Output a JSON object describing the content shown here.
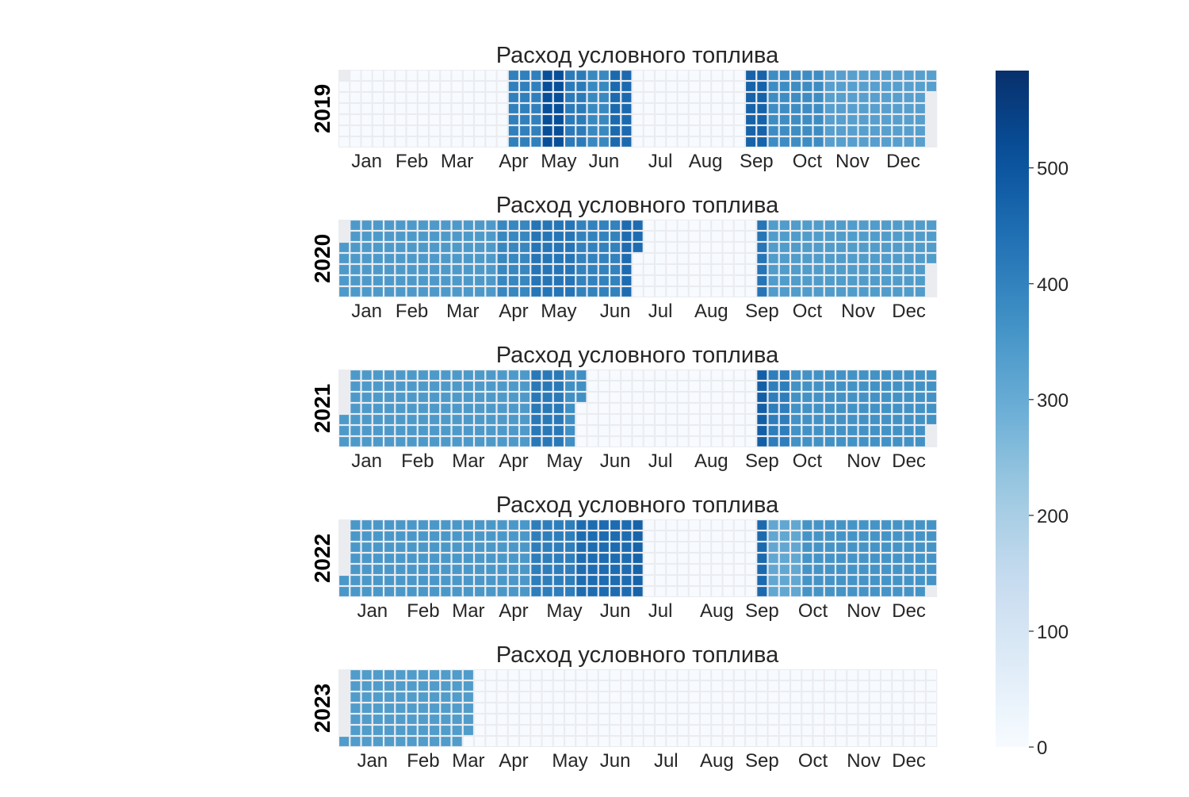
{
  "chart_data": {
    "type": "heatmap",
    "cmap": "Blues",
    "color_range": [
      0,
      584
    ],
    "colorbar_ticks": [
      0,
      100,
      200,
      300,
      400,
      500
    ],
    "month_labels": [
      "Jan",
      "Feb",
      "Mar",
      "Apr",
      "May",
      "Jun",
      "Jul",
      "Aug",
      "Sep",
      "Oct",
      "Nov",
      "Dec"
    ],
    "fill_color": "#ebecf0",
    "panels": [
      {
        "year": "2019",
        "title": "Расход условного топлива",
        "first_weekday": 1,
        "periods": [
          {
            "from": "2019-01-01",
            "to": "2019-04-14",
            "value": 0
          },
          {
            "from": "2019-04-15",
            "to": "2019-05-05",
            "value": 405
          },
          {
            "from": "2019-05-06",
            "to": "2019-05-19",
            "value": 515
          },
          {
            "from": "2019-05-20",
            "to": "2019-06-02",
            "value": 415
          },
          {
            "from": "2019-06-03",
            "to": "2019-06-16",
            "value": 385
          },
          {
            "from": "2019-06-17",
            "to": "2019-06-30",
            "value": 455
          },
          {
            "from": "2019-07-01",
            "to": "2019-09-08",
            "value": 0
          },
          {
            "from": "2019-09-09",
            "to": "2019-09-22",
            "value": 470
          },
          {
            "from": "2019-09-23",
            "to": "2019-10-27",
            "value": 375
          },
          {
            "from": "2019-10-28",
            "to": "2019-12-31",
            "value": 330
          }
        ]
      },
      {
        "year": "2020",
        "title": "Расход условного топлива",
        "first_weekday": 2,
        "periods": [
          {
            "from": "2020-01-01",
            "to": "2020-04-05",
            "value": 345
          },
          {
            "from": "2020-04-06",
            "to": "2020-04-26",
            "value": 390
          },
          {
            "from": "2020-04-27",
            "to": "2020-05-24",
            "value": 430
          },
          {
            "from": "2020-05-25",
            "to": "2020-06-21",
            "value": 400
          },
          {
            "from": "2020-06-22",
            "to": "2020-07-01",
            "value": 450
          },
          {
            "from": "2020-07-02",
            "to": "2020-09-13",
            "value": 0
          },
          {
            "from": "2020-09-14",
            "to": "2020-09-20",
            "value": 430
          },
          {
            "from": "2020-09-21",
            "to": "2020-12-31",
            "value": 340
          }
        ]
      },
      {
        "year": "2021",
        "title": "Расход условного топлива",
        "first_weekday": 4,
        "periods": [
          {
            "from": "2021-01-01",
            "to": "2021-04-25",
            "value": 345
          },
          {
            "from": "2021-04-26",
            "to": "2021-05-16",
            "value": 420
          },
          {
            "from": "2021-05-17",
            "to": "2021-05-26",
            "value": 370
          },
          {
            "from": "2021-05-27",
            "to": "2021-09-12",
            "value": 0
          },
          {
            "from": "2021-09-13",
            "to": "2021-09-19",
            "value": 480
          },
          {
            "from": "2021-09-20",
            "to": "2021-10-03",
            "value": 410
          },
          {
            "from": "2021-10-04",
            "to": "2021-12-31",
            "value": 365
          }
        ]
      },
      {
        "year": "2022",
        "title": "Расход условного топлива",
        "first_weekday": 5,
        "periods": [
          {
            "from": "2022-01-01",
            "to": "2022-04-24",
            "value": 350
          },
          {
            "from": "2022-04-25",
            "to": "2022-05-22",
            "value": 410
          },
          {
            "from": "2022-05-23",
            "to": "2022-06-26",
            "value": 450
          },
          {
            "from": "2022-06-27",
            "to": "2022-07-03",
            "value": 470
          },
          {
            "from": "2022-07-04",
            "to": "2022-09-11",
            "value": 0
          },
          {
            "from": "2022-09-12",
            "to": "2022-09-18",
            "value": 455
          },
          {
            "from": "2022-09-19",
            "to": "2022-10-09",
            "value": 310
          },
          {
            "from": "2022-10-10",
            "to": "2022-12-31",
            "value": 360
          }
        ]
      },
      {
        "year": "2023",
        "title": "Расход условного топлива",
        "first_weekday": 6,
        "periods": [
          {
            "from": "2023-01-01",
            "to": "2023-03-18",
            "value": 340
          },
          {
            "from": "2023-03-19",
            "to": "2023-12-31",
            "value": 0
          }
        ]
      }
    ]
  }
}
